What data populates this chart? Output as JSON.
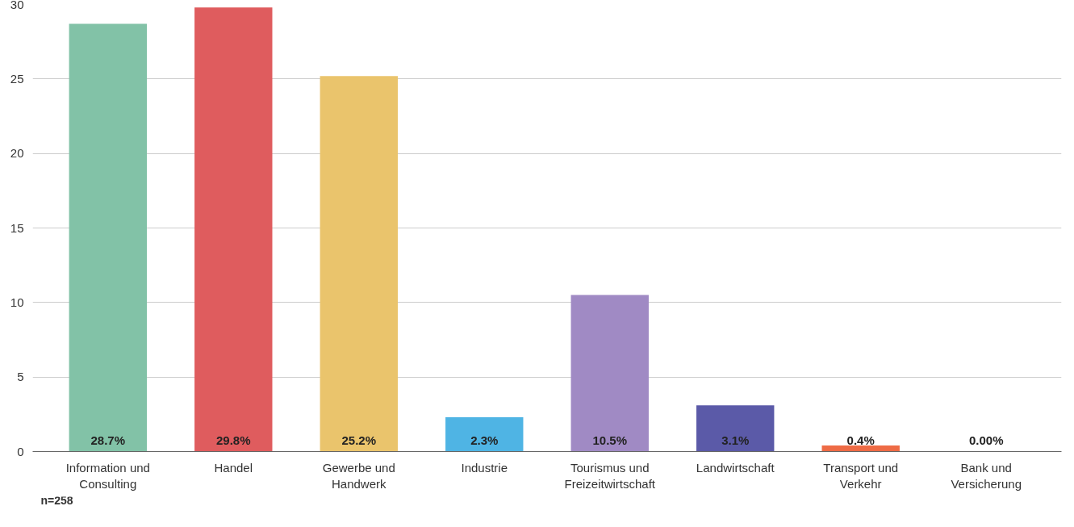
{
  "chart_data": {
    "type": "bar",
    "categories": [
      "Information und Consulting",
      "Handel",
      "Gewerbe und Handwerk",
      "Industrie",
      "Tourismus und Freizeitwirtschaft",
      "Landwirtschaft",
      "Transport und Verkehr",
      "Bank und Versicherung"
    ],
    "values": [
      28.7,
      29.8,
      25.2,
      2.3,
      10.5,
      3.1,
      0.4,
      0.0
    ],
    "colors": [
      "#82c2a7",
      "#df5c5e",
      "#eac46c",
      "#4fb4e4",
      "#a08ac4",
      "#5b5aa8",
      "#ee6b45",
      "#aaaaaa"
    ],
    "value_labels": [
      "28.7%",
      "29.8%",
      "25.2%",
      "2.3%",
      "10.5%",
      "3.1%",
      "0.4%",
      "0.00%"
    ],
    "ylim": [
      0,
      30
    ],
    "yticks": [
      0,
      5,
      10,
      15,
      20,
      25,
      30
    ],
    "grid": "y",
    "annotations": [
      "n=258"
    ]
  }
}
